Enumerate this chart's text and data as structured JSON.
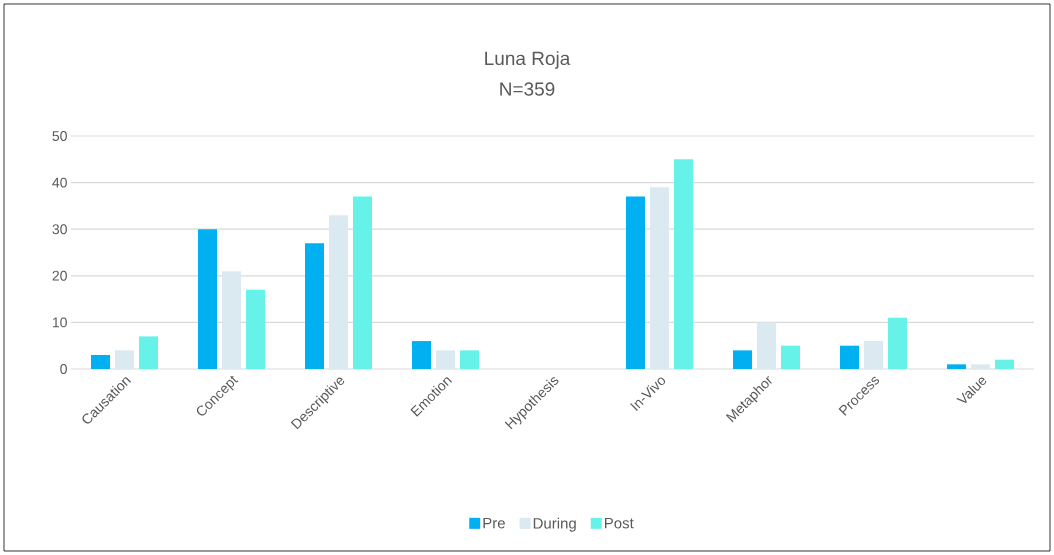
{
  "chart_data": {
    "type": "bar",
    "title": "Luna Roja",
    "subtitle": "N=359",
    "categories": [
      "Causation",
      "Concept",
      "Descriptive",
      "Emotion",
      "Hypothesis",
      "In-Vivo",
      "Metaphor",
      "Process",
      "Value"
    ],
    "series": [
      {
        "name": "Pre",
        "color": "#00b0f0",
        "values": [
          3,
          30,
          27,
          6,
          0,
          37,
          4,
          5,
          1
        ]
      },
      {
        "name": "During",
        "color": "#daeaf0",
        "values": [
          4,
          21,
          33,
          4,
          0,
          39,
          10,
          6,
          1
        ]
      },
      {
        "name": "Post",
        "color": "#66f2e8",
        "values": [
          7,
          17,
          37,
          4,
          0,
          45,
          5,
          11,
          2
        ]
      }
    ],
    "ylim": [
      0,
      50
    ],
    "yticks": [
      0,
      10,
      20,
      30,
      40,
      50
    ],
    "grid": "y",
    "legend": "bottom"
  }
}
